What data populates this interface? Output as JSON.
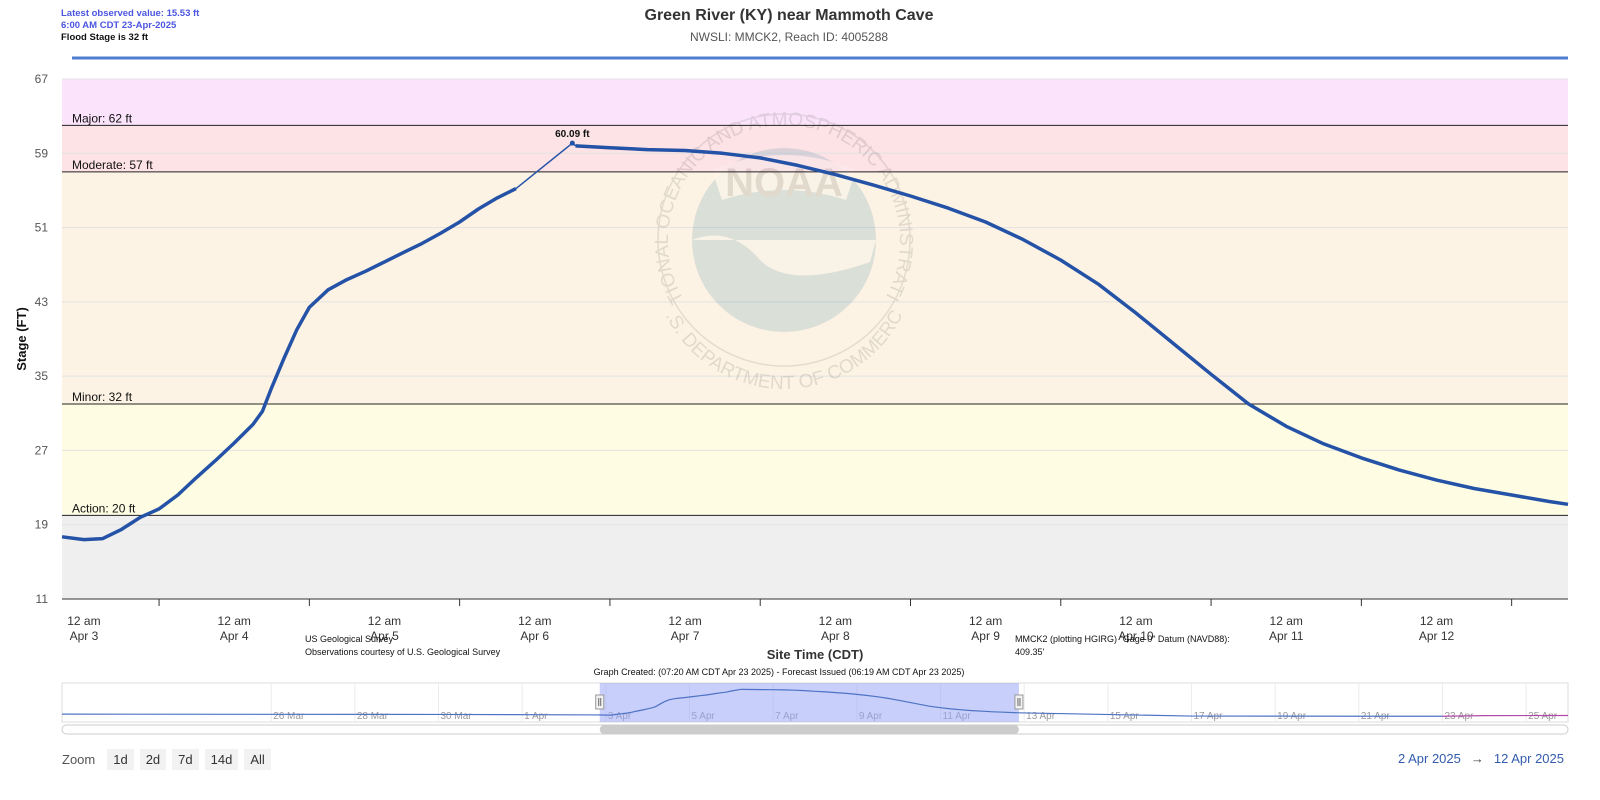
{
  "info": {
    "latest": "Latest observed value: 15.53 ft",
    "time": "6:00 AM CDT 23-Apr-2025",
    "flood_stage": "Flood Stage is 32 ft"
  },
  "header": {
    "title": "Green River (KY) near Mammoth Cave",
    "subtitle": "NWSLI: MMCK2, Reach ID: 4005288"
  },
  "chart_data": {
    "type": "line",
    "title": "Green River (KY) near Mammoth Cave",
    "ylabel": "Stage (FT)",
    "xlabel": "Site Time (CDT)",
    "ylim": [
      11,
      67
    ],
    "y_ticks": [
      11,
      19,
      27,
      35,
      43,
      51,
      59,
      67
    ],
    "xlim": [
      "2025-04-02 20:30",
      "2025-04-12 21:00"
    ],
    "x_ticks": [
      {
        "t": "2025-04-03 00:00",
        "top": "12 am",
        "bottom": "Apr 3"
      },
      {
        "t": "2025-04-04 00:00",
        "top": "12 am",
        "bottom": "Apr 4"
      },
      {
        "t": "2025-04-05 00:00",
        "top": "12 am",
        "bottom": "Apr 5"
      },
      {
        "t": "2025-04-06 00:00",
        "top": "12 am",
        "bottom": "Apr 6"
      },
      {
        "t": "2025-04-07 00:00",
        "top": "12 am",
        "bottom": "Apr 7"
      },
      {
        "t": "2025-04-08 00:00",
        "top": "12 am",
        "bottom": "Apr 8"
      },
      {
        "t": "2025-04-09 00:00",
        "top": "12 am",
        "bottom": "Apr 9"
      },
      {
        "t": "2025-04-10 00:00",
        "top": "12 am",
        "bottom": "Apr 10"
      },
      {
        "t": "2025-04-11 00:00",
        "top": "12 am",
        "bottom": "Apr 11"
      },
      {
        "t": "2025-04-12 00:00",
        "top": "12 am",
        "bottom": "Apr 12"
      }
    ],
    "bands": [
      {
        "name": "Major: 62 ft",
        "from": 62,
        "to": 67,
        "color": "#fbe4fb"
      },
      {
        "name": "Moderate: 57 ft",
        "from": 57,
        "to": 62,
        "color": "#fde2e6"
      },
      {
        "name": "Minor: 32 ft",
        "from": 32,
        "to": 57,
        "color": "#fdf3e4"
      },
      {
        "name": "Action: 20 ft",
        "from": 20,
        "to": 32,
        "color": "#fefde4"
      },
      {
        "name": "",
        "from": 11,
        "to": 20,
        "color": "#efefef"
      }
    ],
    "thresholds": [
      {
        "label": "Major: 62 ft",
        "value": 62
      },
      {
        "label": "Moderate: 57 ft",
        "value": 57
      },
      {
        "label": "Minor: 32 ft",
        "value": 32
      },
      {
        "label": "Action: 20 ft",
        "value": 20
      }
    ],
    "series": [
      {
        "color": "#2452a6",
        "points": [
          [
            "2025-04-02 20:30",
            17.7
          ],
          [
            "2025-04-03 00:00",
            17.4
          ],
          [
            "2025-04-03 03:00",
            17.5
          ],
          [
            "2025-04-03 06:00",
            18.5
          ],
          [
            "2025-04-03 09:00",
            19.8
          ],
          [
            "2025-04-03 12:00",
            20.7
          ],
          [
            "2025-04-03 15:00",
            22.2
          ],
          [
            "2025-04-03 18:00",
            24.1
          ],
          [
            "2025-04-03 21:00",
            25.9
          ],
          [
            "2025-04-04 00:00",
            27.8
          ],
          [
            "2025-04-04 03:00",
            29.8
          ],
          [
            "2025-04-04 04:30",
            31.2
          ],
          [
            "2025-04-04 06:00",
            33.8
          ],
          [
            "2025-04-04 08:00",
            37.0
          ],
          [
            "2025-04-04 10:00",
            40.0
          ],
          [
            "2025-04-04 12:00",
            42.4
          ],
          [
            "2025-04-04 15:00",
            44.3
          ],
          [
            "2025-04-04 18:00",
            45.4
          ],
          [
            "2025-04-04 21:00",
            46.3
          ],
          [
            "2025-04-05 00:00",
            47.3
          ],
          [
            "2025-04-05 03:00",
            48.3
          ],
          [
            "2025-04-05 06:00",
            49.3
          ],
          [
            "2025-04-05 09:00",
            50.4
          ],
          [
            "2025-04-05 12:00",
            51.6
          ],
          [
            "2025-04-05 15:00",
            53.0
          ],
          [
            "2025-04-05 18:00",
            54.2
          ],
          [
            "2025-04-05 21:00",
            55.2
          ],
          [
            "2025-04-06 00:00",
            57.2
          ],
          [
            "2025-04-06 06:00",
            60.09
          ],
          [
            "2025-04-06 06:30",
            59.8
          ],
          [
            "2025-04-06 12:00",
            59.6
          ],
          [
            "2025-04-06 18:00",
            59.4
          ],
          [
            "2025-04-07 00:00",
            59.3
          ],
          [
            "2025-04-07 06:00",
            59.0
          ],
          [
            "2025-04-07 12:00",
            58.5
          ],
          [
            "2025-04-07 18:00",
            57.7
          ],
          [
            "2025-04-08 00:00",
            56.7
          ],
          [
            "2025-04-08 06:00",
            55.6
          ],
          [
            "2025-04-08 12:00",
            54.4
          ],
          [
            "2025-04-08 18:00",
            53.1
          ],
          [
            "2025-04-09 00:00",
            51.6
          ],
          [
            "2025-04-09 06:00",
            49.7
          ],
          [
            "2025-04-09 12:00",
            47.5
          ],
          [
            "2025-04-09 18:00",
            44.9
          ],
          [
            "2025-04-10 00:00",
            41.8
          ],
          [
            "2025-04-10 06:00",
            38.5
          ],
          [
            "2025-04-10 12:00",
            35.2
          ],
          [
            "2025-04-10 18:00",
            32.0
          ],
          [
            "2025-04-11 00:00",
            29.6
          ],
          [
            "2025-04-11 06:00",
            27.7
          ],
          [
            "2025-04-11 12:00",
            26.2
          ],
          [
            "2025-04-11 18:00",
            24.9
          ],
          [
            "2025-04-12 00:00",
            23.8
          ],
          [
            "2025-04-12 06:00",
            22.9
          ],
          [
            "2025-04-12 12:00",
            22.2
          ],
          [
            "2025-04-12 18:00",
            21.5
          ],
          [
            "2025-04-12 21:00",
            21.2
          ]
        ]
      }
    ],
    "annotations": [
      {
        "text": "60.09 ft",
        "x": "2025-04-06 06:00",
        "y": 60.09
      }
    ],
    "watermark": {
      "logo": "NOAA",
      "ring_text": "NATIONAL OCEANIC AND ATMOSPHERIC ADMINISTRATION",
      "ring_text_bottom": "U.S. DEPARTMENT OF COMMERCE"
    },
    "credits": {
      "left_line1": "US Geological Survey",
      "left_line2": "Observations courtesy of U.S. Geological Survey",
      "right_line1": "MMCK2 (plotting HGIRG) \"Gage 0\" Datum (NAVD88):",
      "right_line2": "409.35'",
      "created": "Graph Created: (07:20 AM CDT Apr 23 2025) - Forecast Issued (06:19 AM CDT Apr 23 2025)"
    },
    "navigator": {
      "range": [
        "2025-03-21 00:00",
        "2025-04-26 00:00"
      ],
      "selected": [
        "2025-04-02 20:30",
        "2025-04-12 21:00"
      ],
      "labels": [
        {
          "t": "2025-03-26",
          "text": "26 Mar"
        },
        {
          "t": "2025-03-28",
          "text": "28 Mar"
        },
        {
          "t": "2025-03-30",
          "text": "30 Mar"
        },
        {
          "t": "2025-04-01",
          "text": "1 Apr"
        },
        {
          "t": "2025-04-03",
          "text": "3 Apr"
        },
        {
          "t": "2025-04-05",
          "text": "5 Apr"
        },
        {
          "t": "2025-04-07",
          "text": "7 Apr"
        },
        {
          "t": "2025-04-09",
          "text": "9 Apr"
        },
        {
          "t": "2025-04-11",
          "text": "11 Apr"
        },
        {
          "t": "2025-04-13",
          "text": "13 Apr"
        },
        {
          "t": "2025-04-15",
          "text": "15 Apr"
        },
        {
          "t": "2025-04-17",
          "text": "17 Apr"
        },
        {
          "t": "2025-04-19",
          "text": "19 Apr"
        },
        {
          "t": "2025-04-21",
          "text": "21 Apr"
        },
        {
          "t": "2025-04-23",
          "text": "23 Apr"
        },
        {
          "t": "2025-04-25",
          "text": "25 Apr"
        }
      ]
    }
  },
  "zoom": {
    "label": "Zoom",
    "buttons": [
      "1d",
      "2d",
      "7d",
      "14d",
      "All"
    ]
  },
  "range": {
    "from": "2 Apr 2025",
    "arrow": "→",
    "to": "12 Apr 2025"
  }
}
